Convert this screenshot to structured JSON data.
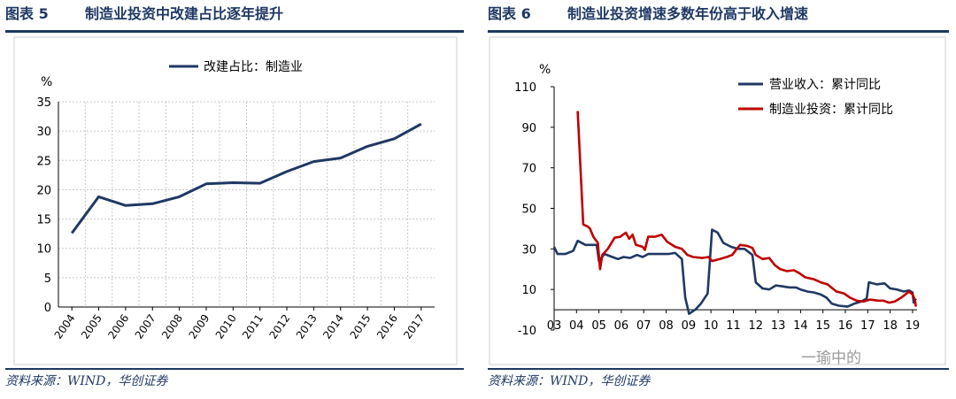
{
  "left": {
    "title_num": "图表 5",
    "title_text": "制造业投资中改建占比逐年提升",
    "source": "资料来源：WIND，华创证券"
  },
  "right": {
    "title_num": "图表 6",
    "title_text": "制造业投资增速多数年份高于收入增速",
    "source": "资料来源：WIND，华创证券"
  },
  "watermark": "一瑜中的",
  "chart_data": [
    {
      "type": "line",
      "ylabel": "%",
      "ylim": [
        0,
        35
      ],
      "yticks": [
        0,
        5,
        10,
        15,
        20,
        25,
        30,
        35
      ],
      "grid": true,
      "legend_position": "top",
      "x": [
        "2004",
        "2005",
        "2006",
        "2007",
        "2008",
        "2009",
        "2010",
        "2011",
        "2012",
        "2013",
        "2014",
        "2015",
        "2016",
        "2017"
      ],
      "series": [
        {
          "name": "改建占比：制造业",
          "color": "#1f3864",
          "values": [
            12.6,
            18.8,
            17.3,
            17.6,
            18.8,
            21.0,
            21.2,
            21.1,
            23.1,
            24.8,
            25.4,
            27.4,
            28.7,
            31.2
          ]
        }
      ]
    },
    {
      "type": "line",
      "ylabel": "%",
      "ylim": [
        -10,
        110
      ],
      "yticks": [
        -10,
        10,
        30,
        50,
        70,
        90,
        110
      ],
      "xlim": [
        2003,
        2019.2
      ],
      "xticks": [
        "03",
        "04",
        "05",
        "06",
        "07",
        "08",
        "09",
        "10",
        "11",
        "12",
        "13",
        "14",
        "15",
        "16",
        "17",
        "18",
        "19"
      ],
      "grid": false,
      "legend_position": "top-right",
      "series": [
        {
          "name": "营业收入：累计同比",
          "color": "#1f3864",
          "points": [
            [
              2003.0,
              31
            ],
            [
              2003.15,
              27.5
            ],
            [
              2003.5,
              27.5
            ],
            [
              2003.85,
              29
            ],
            [
              2004.05,
              34
            ],
            [
              2004.4,
              32
            ],
            [
              2004.9,
              32
            ],
            [
              2005.0,
              24
            ],
            [
              2005.25,
              27.5
            ],
            [
              2005.6,
              26
            ],
            [
              2005.85,
              25
            ],
            [
              2006.1,
              26
            ],
            [
              2006.4,
              25.5
            ],
            [
              2006.7,
              27
            ],
            [
              2006.95,
              26
            ],
            [
              2007.2,
              27.5
            ],
            [
              2007.6,
              27.5
            ],
            [
              2008.1,
              27.5
            ],
            [
              2008.4,
              28
            ],
            [
              2008.7,
              25
            ],
            [
              2008.85,
              6
            ],
            [
              2009.02,
              -2
            ],
            [
              2009.3,
              0
            ],
            [
              2009.55,
              3
            ],
            [
              2009.85,
              8
            ],
            [
              2010.05,
              39.5
            ],
            [
              2010.3,
              38
            ],
            [
              2010.55,
              33
            ],
            [
              2010.9,
              31
            ],
            [
              2011.2,
              30
            ],
            [
              2011.5,
              30
            ],
            [
              2011.85,
              27
            ],
            [
              2012.0,
              13.5
            ],
            [
              2012.3,
              10.5
            ],
            [
              2012.6,
              10
            ],
            [
              2012.9,
              12
            ],
            [
              2013.2,
              11.5
            ],
            [
              2013.5,
              11
            ],
            [
              2013.8,
              11
            ],
            [
              2014.0,
              10
            ],
            [
              2014.3,
              9
            ],
            [
              2014.6,
              8.5
            ],
            [
              2014.9,
              7.5
            ],
            [
              2015.15,
              6
            ],
            [
              2015.4,
              3
            ],
            [
              2015.7,
              2
            ],
            [
              2016.1,
              1.5
            ],
            [
              2016.4,
              3
            ],
            [
              2016.7,
              4
            ],
            [
              2016.95,
              5.5
            ],
            [
              2017.05,
              13.5
            ],
            [
              2017.4,
              12.5
            ],
            [
              2017.75,
              13
            ],
            [
              2018.0,
              10.5
            ],
            [
              2018.3,
              10
            ],
            [
              2018.6,
              9
            ],
            [
              2018.85,
              9.5
            ],
            [
              2019.0,
              8.5
            ],
            [
              2019.05,
              3.5
            ],
            [
              2019.15,
              5.5
            ]
          ]
        },
        {
          "name": "制造业投资：累计同比",
          "color": "#c00000",
          "points": [
            [
              2004.05,
              98
            ],
            [
              2004.3,
              42
            ],
            [
              2004.5,
              41
            ],
            [
              2004.6,
              40
            ],
            [
              2004.75,
              36
            ],
            [
              2004.95,
              33
            ],
            [
              2005.05,
              20
            ],
            [
              2005.15,
              27
            ],
            [
              2005.4,
              30
            ],
            [
              2005.7,
              35.5
            ],
            [
              2005.95,
              36
            ],
            [
              2006.2,
              38
            ],
            [
              2006.35,
              35
            ],
            [
              2006.5,
              37
            ],
            [
              2006.65,
              32
            ],
            [
              2006.95,
              31
            ],
            [
              2007.05,
              29.5
            ],
            [
              2007.2,
              36
            ],
            [
              2007.5,
              36
            ],
            [
              2007.8,
              37
            ],
            [
              2008.05,
              33.5
            ],
            [
              2008.4,
              31
            ],
            [
              2008.7,
              30
            ],
            [
              2008.95,
              27
            ],
            [
              2009.2,
              26
            ],
            [
              2009.6,
              25.5
            ],
            [
              2009.9,
              26
            ],
            [
              2010.05,
              24
            ],
            [
              2010.4,
              25
            ],
            [
              2010.7,
              26
            ],
            [
              2010.95,
              27
            ],
            [
              2011.15,
              30
            ],
            [
              2011.3,
              32
            ],
            [
              2011.6,
              31.5
            ],
            [
              2011.85,
              30.5
            ],
            [
              2012.0,
              27
            ],
            [
              2012.3,
              25
            ],
            [
              2012.6,
              25.5
            ],
            [
              2012.85,
              22
            ],
            [
              2013.1,
              20
            ],
            [
              2013.4,
              19
            ],
            [
              2013.7,
              19.5
            ],
            [
              2013.95,
              18
            ],
            [
              2014.2,
              16
            ],
            [
              2014.6,
              15
            ],
            [
              2014.9,
              13.5
            ],
            [
              2015.2,
              12.5
            ],
            [
              2015.6,
              9
            ],
            [
              2015.95,
              8
            ],
            [
              2016.2,
              6
            ],
            [
              2016.5,
              4.5
            ],
            [
              2016.8,
              4
            ],
            [
              2017.1,
              5
            ],
            [
              2017.45,
              4.5
            ],
            [
              2017.7,
              4.5
            ],
            [
              2017.95,
              3.5
            ],
            [
              2018.2,
              4
            ],
            [
              2018.5,
              6
            ],
            [
              2018.85,
              9
            ],
            [
              2019.0,
              7.5
            ],
            [
              2019.1,
              5
            ],
            [
              2019.15,
              1.5
            ]
          ]
        }
      ]
    }
  ]
}
